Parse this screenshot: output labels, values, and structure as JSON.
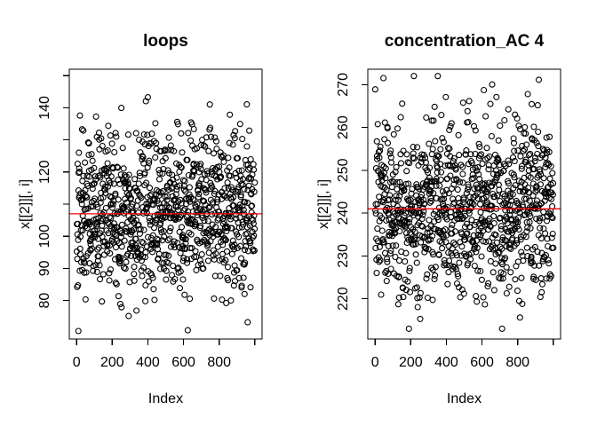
{
  "figure": {
    "background": "#FFFFFF",
    "foreground": "#000000"
  },
  "chart_data": [
    {
      "type": "scatter",
      "title": "loops",
      "xlabel": "Index",
      "ylabel": "x[[2]][, i]",
      "xlim": [
        -41,
        1041
      ],
      "ylim": [
        68,
        152
      ],
      "x_ticks": {
        "values": [
          0,
          200,
          400,
          600,
          800,
          1000
        ],
        "labels": [
          "0",
          "200",
          "400",
          "600",
          "800",
          ""
        ]
      },
      "y_ticks": {
        "values": [
          150,
          140,
          130,
          120,
          110,
          100,
          90,
          80
        ],
        "labels": [
          "",
          "140",
          "",
          "120",
          "",
          "100",
          "90",
          "80"
        ]
      },
      "grid": false,
      "mean_line": {
        "value": 107,
        "color": "#FF0000"
      },
      "points": {
        "n": 1000,
        "x_start": 1,
        "x_end": 1000,
        "distribution": "normal",
        "y_mean": 107.2,
        "y_sd": 12.5,
        "y_observed_min": 70.5,
        "y_observed_max": 148.5,
        "marker": "open-circle",
        "color": "#000000",
        "render_seed": 42
      }
    },
    {
      "type": "scatter",
      "title": "concentration_AC 4",
      "xlabel": "Index",
      "ylabel": "x[[2]][, i]",
      "xlim": [
        -41,
        1041
      ],
      "ylim": [
        210.6,
        273.6
      ],
      "x_ticks": {
        "values": [
          0,
          200,
          400,
          600,
          800,
          1000
        ],
        "labels": [
          "0",
          "200",
          "400",
          "600",
          "800",
          ""
        ]
      },
      "y_ticks": {
        "values": [
          270,
          260,
          250,
          240,
          230,
          220
        ],
        "labels": [
          "270",
          "260",
          "250",
          "240",
          "230",
          "220"
        ]
      },
      "grid": false,
      "mean_line": {
        "value": 241,
        "color": "#FF0000"
      },
      "points": {
        "n": 1000,
        "x_start": 1,
        "x_end": 1000,
        "distribution": "normal",
        "y_mean": 241.3,
        "y_sd": 10,
        "y_observed_min": 213,
        "y_observed_max": 272,
        "marker": "open-circle",
        "color": "#000000",
        "render_seed": 7
      }
    }
  ]
}
